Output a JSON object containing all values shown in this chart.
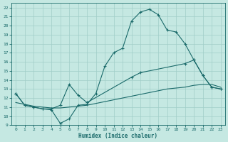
{
  "xlabel": "Humidex (Indice chaleur)",
  "bg_color": "#c5e8e2",
  "grid_color": "#a0cdc8",
  "line_color": "#1a6a6a",
  "xlim": [
    -0.5,
    23.5
  ],
  "ylim": [
    9,
    22.5
  ],
  "xticks": [
    0,
    1,
    2,
    3,
    4,
    5,
    6,
    7,
    8,
    9,
    10,
    11,
    12,
    13,
    14,
    15,
    16,
    17,
    18,
    19,
    20,
    21,
    22,
    23
  ],
  "yticks": [
    9,
    10,
    11,
    12,
    13,
    14,
    15,
    16,
    17,
    18,
    19,
    20,
    21,
    22
  ],
  "curve1_x": [
    0,
    1,
    2,
    3,
    4,
    5,
    6,
    7,
    8,
    9,
    10,
    11,
    12,
    13,
    14,
    15,
    16,
    17,
    18,
    19,
    20,
    21,
    22,
    23
  ],
  "curve1_y": [
    12.5,
    11.2,
    11.0,
    10.8,
    10.7,
    9.2,
    9.7,
    11.2,
    11.3,
    12.5,
    15.5,
    17.0,
    17.5,
    20.5,
    21.5,
    21.8,
    21.2,
    19.5,
    19.3,
    18.0,
    16.2,
    14.5,
    13.2,
    13.0
  ],
  "curve2_x": [
    0,
    1,
    2,
    3,
    4,
    5,
    6,
    7,
    8,
    13,
    14,
    19,
    20,
    21,
    22,
    23
  ],
  "curve2_y": [
    12.5,
    11.2,
    11.0,
    10.8,
    10.8,
    11.2,
    13.5,
    12.3,
    11.5,
    14.3,
    14.8,
    15.8,
    16.2,
    14.5,
    13.2,
    13.0
  ],
  "curve3_x": [
    0,
    1,
    2,
    3,
    4,
    5,
    6,
    7,
    8,
    9,
    10,
    11,
    12,
    13,
    14,
    15,
    16,
    17,
    18,
    19,
    20,
    21,
    22,
    23
  ],
  "curve3_y": [
    11.5,
    11.3,
    11.1,
    11.0,
    10.9,
    10.9,
    11.0,
    11.1,
    11.2,
    11.4,
    11.6,
    11.8,
    12.0,
    12.2,
    12.4,
    12.6,
    12.8,
    13.0,
    13.1,
    13.2,
    13.4,
    13.5,
    13.5,
    13.2
  ]
}
